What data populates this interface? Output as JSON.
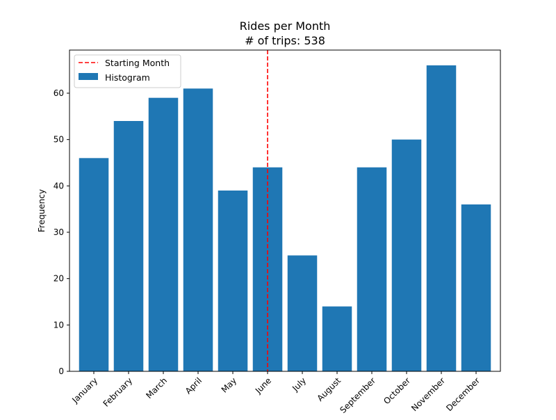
{
  "chart_data": {
    "type": "bar",
    "title": "Rides per Month",
    "subtitle": "# of trips: 538",
    "xlabel": "",
    "ylabel": "Frequency",
    "ylim": [
      0,
      69.3
    ],
    "yticks": [
      0,
      10,
      20,
      30,
      40,
      50,
      60
    ],
    "categories": [
      "January",
      "February",
      "March",
      "April",
      "May",
      "June",
      "July",
      "August",
      "September",
      "October",
      "November",
      "December"
    ],
    "values": [
      46,
      54,
      59,
      61,
      39,
      44,
      25,
      14,
      44,
      50,
      66,
      36
    ],
    "bar_color": "#1f77b4",
    "reference_line": {
      "label": "Starting Month",
      "category": "June",
      "color": "#ff0000",
      "style": "dashed"
    },
    "legend": {
      "placement": "top-left",
      "entries": [
        "Starting Month",
        "Histogram"
      ]
    },
    "grid": false
  }
}
